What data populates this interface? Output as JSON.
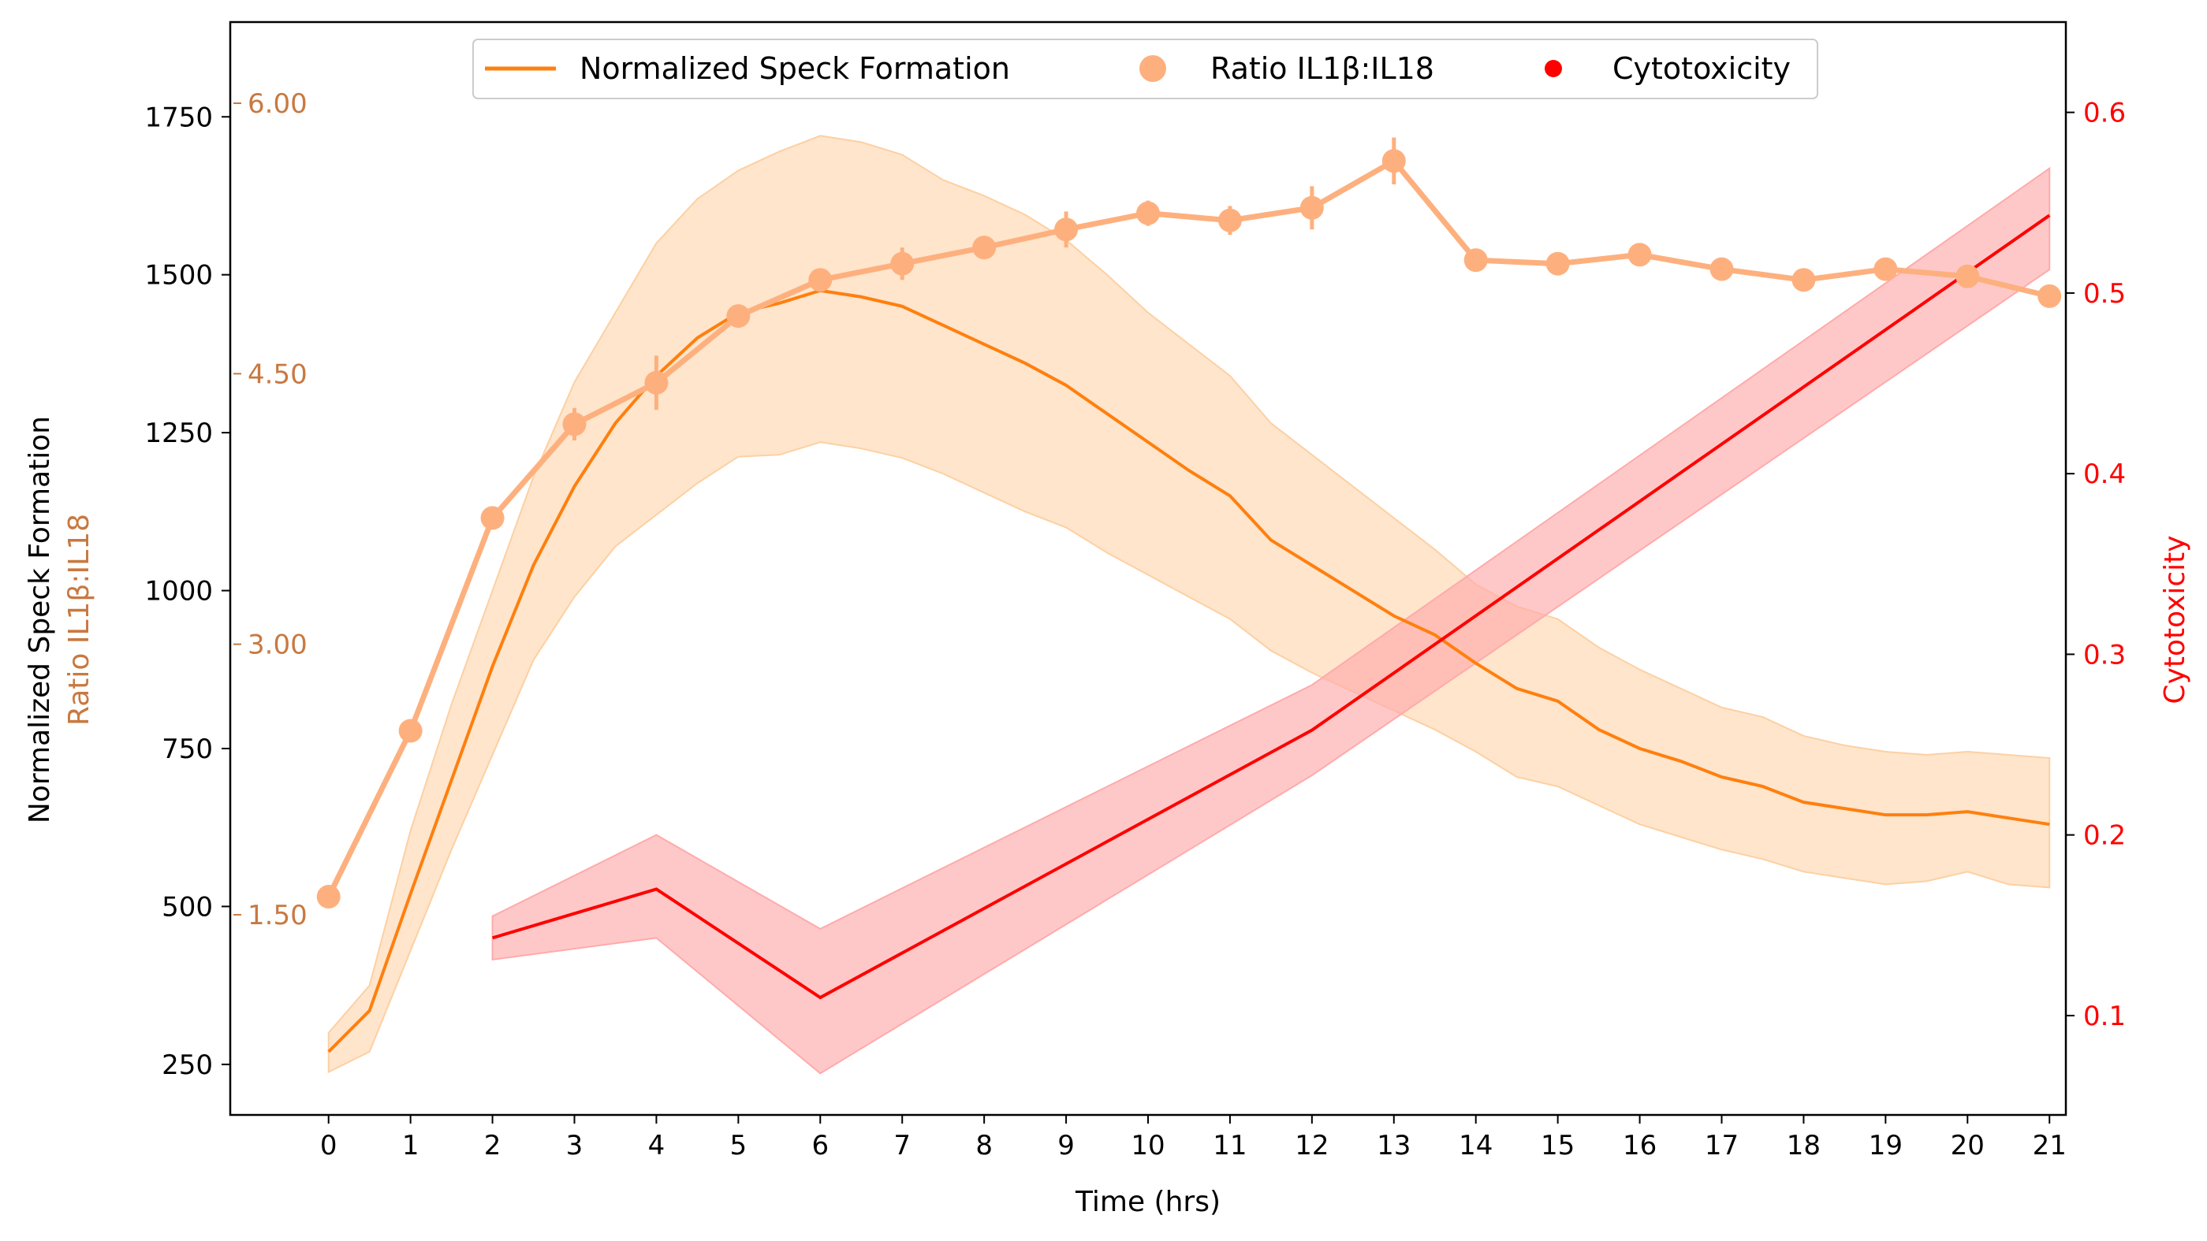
{
  "chart_data": {
    "type": "line",
    "colors": {
      "speck": "#ff7f0e",
      "speck_band": "#fdd0a2",
      "ratio": "#fdb07e",
      "ratio_axis": "#c87941",
      "cytotoxicity": "#ff0000",
      "cytotoxicity_band": "#ffaaaa"
    },
    "xlabel": "Time (hrs)",
    "xlim": [
      -1.2,
      21.2
    ],
    "xticks": [
      0,
      1,
      2,
      3,
      4,
      5,
      6,
      7,
      8,
      9,
      10,
      11,
      12,
      13,
      14,
      15,
      16,
      17,
      18,
      19,
      20,
      21
    ],
    "axes": {
      "left": {
        "label": "Normalized Speck Formation",
        "lim": [
          170,
          1900
        ],
        "ticks": [
          250,
          500,
          750,
          1000,
          1250,
          1500,
          1750
        ]
      },
      "left_inner": {
        "label": "Ratio IL1β:IL18",
        "lim": [
          0.39,
          6.45
        ],
        "ticks": [
          1.5,
          3.0,
          4.5,
          6.0
        ],
        "tick_labels": [
          "1.50",
          "3.00",
          "4.50",
          "6.00"
        ]
      },
      "right": {
        "label": "Cytotoxicity",
        "lim": [
          0.045,
          0.65
        ],
        "ticks": [
          0.1,
          0.2,
          0.3,
          0.4,
          0.5,
          0.6
        ],
        "tick_labels": [
          "0.1",
          "0.2",
          "0.3",
          "0.4",
          "0.5",
          "0.6"
        ]
      }
    },
    "legend": {
      "placement": "top-center",
      "entries": [
        "Normalized Speck Formation",
        "Ratio IL1β:IL18",
        "Cytotoxicity"
      ]
    },
    "series": [
      {
        "name": "Normalized Speck Formation",
        "axis": "left",
        "style": "line-band",
        "x": [
          0,
          0.5,
          1,
          1.5,
          2,
          2.5,
          3,
          3.5,
          4,
          4.5,
          5,
          5.5,
          6,
          6.5,
          7,
          7.5,
          8,
          8.5,
          9,
          9.5,
          10,
          10.5,
          11,
          11.5,
          12,
          12.5,
          13,
          13.5,
          14,
          14.5,
          15,
          15.5,
          16,
          16.5,
          17,
          17.5,
          18,
          18.5,
          19,
          19.5,
          20,
          20.5,
          21
        ],
        "y": [
          270,
          335,
          520,
          700,
          880,
          1040,
          1165,
          1265,
          1340,
          1400,
          1440,
          1455,
          1475,
          1465,
          1450,
          1420,
          1390,
          1360,
          1325,
          1280,
          1235,
          1190,
          1150,
          1080,
          1040,
          1000,
          960,
          930,
          885,
          845,
          825,
          780,
          750,
          730,
          705,
          690,
          665,
          655,
          645,
          645,
          650,
          640,
          630
        ],
        "lower": [
          238,
          270,
          430,
          590,
          740,
          890,
          990,
          1070,
          1120,
          1170,
          1212,
          1215,
          1235,
          1225,
          1210,
          1185,
          1155,
          1125,
          1100,
          1060,
          1025,
          990,
          955,
          905,
          870,
          840,
          810,
          780,
          745,
          705,
          690,
          660,
          630,
          610,
          590,
          575,
          555,
          545,
          535,
          540,
          555,
          535,
          530
        ],
        "upper": [
          300,
          375,
          620,
          820,
          1000,
          1180,
          1330,
          1440,
          1550,
          1620,
          1665,
          1695,
          1720,
          1710,
          1690,
          1650,
          1625,
          1595,
          1555,
          1500,
          1440,
          1390,
          1340,
          1265,
          1215,
          1165,
          1115,
          1065,
          1010,
          975,
          955,
          910,
          875,
          845,
          815,
          800,
          770,
          755,
          745,
          740,
          745,
          740,
          735
        ]
      },
      {
        "name": "Ratio IL1β:IL18",
        "axis": "left_inner",
        "style": "markers-line-errorbar",
        "x": [
          0,
          1,
          2,
          3,
          4,
          5,
          6,
          7,
          8,
          9,
          10,
          11,
          12,
          13,
          14,
          15,
          16,
          17,
          18,
          19,
          20,
          21
        ],
        "y": [
          1.6,
          2.52,
          3.7,
          4.22,
          4.45,
          4.82,
          5.02,
          5.11,
          5.2,
          5.3,
          5.39,
          5.35,
          5.42,
          5.68,
          5.13,
          5.11,
          5.16,
          5.08,
          5.02,
          5.08,
          5.04,
          4.93
        ],
        "err": [
          0.03,
          0.04,
          0.05,
          0.09,
          0.15,
          0.06,
          0.06,
          0.09,
          0.06,
          0.1,
          0.07,
          0.08,
          0.12,
          0.13,
          0.03,
          0.06,
          0.04,
          0.04,
          0.05,
          0.04,
          0.03,
          0.03
        ]
      },
      {
        "name": "Cytotoxicity",
        "axis": "right",
        "style": "line-band",
        "x": [
          2,
          4,
          6,
          12,
          21
        ],
        "y": [
          0.143,
          0.17,
          0.11,
          0.258,
          0.543
        ],
        "lower": [
          0.131,
          0.143,
          0.068,
          0.233,
          0.513
        ],
        "upper": [
          0.155,
          0.2,
          0.148,
          0.283,
          0.569
        ]
      }
    ]
  }
}
